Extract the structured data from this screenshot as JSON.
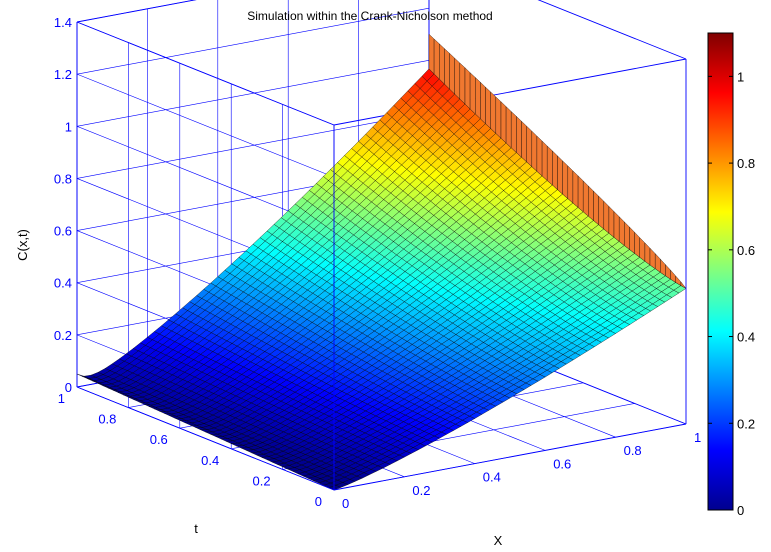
{
  "chart_data": {
    "type": "surface",
    "title": "Simulation within the Crank-Nicholson method",
    "xlabel": "X",
    "ylabel": "t",
    "zlabel": "C(x,t)",
    "xlim": [
      0,
      1
    ],
    "ylim": [
      0,
      1
    ],
    "zlim": [
      0,
      1.4
    ],
    "x_ticks": [
      "0",
      "0.2",
      "0.4",
      "0.6",
      "0.8",
      "1"
    ],
    "y_ticks": [
      "0",
      "0.2",
      "0.4",
      "0.6",
      "0.8",
      "1"
    ],
    "z_ticks": [
      "0",
      "0.2",
      "0.4",
      "0.6",
      "0.8",
      "1",
      "1.2",
      "1.4"
    ],
    "grid": true,
    "colormap": "jet",
    "colorbar": {
      "range": [
        0,
        1.1
      ],
      "ticks": [
        "0",
        "0.2",
        "0.4",
        "0.6",
        "0.8",
        "1"
      ]
    },
    "surface_samples": [
      {
        "x": 0,
        "t": 0,
        "c": 0.0
      },
      {
        "x": 0,
        "t": 1,
        "c": 0.05
      },
      {
        "x": 1,
        "t": 0,
        "c": 0.52
      },
      {
        "x": 1,
        "t": 0.8,
        "c": 0.97
      },
      {
        "x": 1,
        "t": 1,
        "c": 1.1
      }
    ],
    "colors": {
      "axes": "#0000ff",
      "edge": "#000000",
      "background": "#ffffff"
    }
  }
}
